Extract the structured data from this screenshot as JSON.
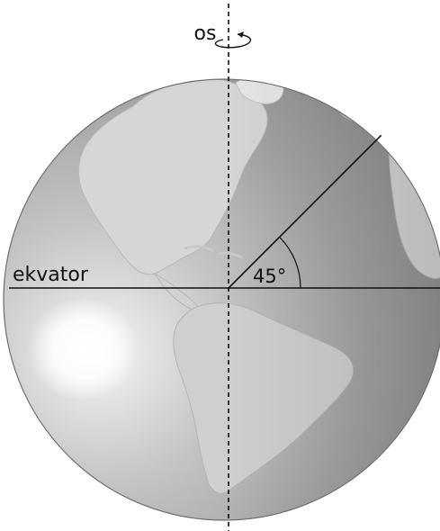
{
  "labels": {
    "axis": "os",
    "equator": "ekvator",
    "angle": "45°"
  },
  "angle_degrees": 45,
  "colors": {
    "ocean": "#9a9a9a",
    "land": "#d2d2d2",
    "line": "#111111",
    "background": "#ffffff"
  },
  "icons": {
    "rotation_arrow": "rotation-arrow-icon"
  }
}
